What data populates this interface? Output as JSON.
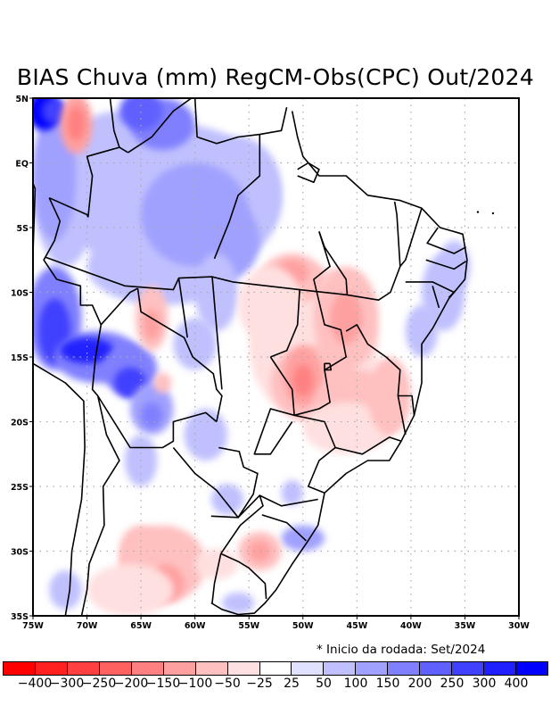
{
  "title": "BIAS Chuva (mm) RegCM-Obs(CPC) Out/2024",
  "note": "* Inicio da rodada: Set/2024",
  "map": {
    "lon_range": [
      -75,
      -30
    ],
    "lat_range": [
      -35,
      5
    ],
    "lat_ticks": [
      {
        "value": 5,
        "label": "5N"
      },
      {
        "value": 0,
        "label": "EQ"
      },
      {
        "value": -5,
        "label": "5S"
      },
      {
        "value": -10,
        "label": "10S"
      },
      {
        "value": -15,
        "label": "15S"
      },
      {
        "value": -20,
        "label": "20S"
      },
      {
        "value": -25,
        "label": "25S"
      },
      {
        "value": -30,
        "label": "30S"
      },
      {
        "value": -35,
        "label": "35S"
      }
    ],
    "lon_ticks": [
      {
        "value": -75,
        "label": "75W"
      },
      {
        "value": -70,
        "label": "70W"
      },
      {
        "value": -65,
        "label": "65W"
      },
      {
        "value": -60,
        "label": "60W"
      },
      {
        "value": -55,
        "label": "55W"
      },
      {
        "value": -50,
        "label": "50W"
      },
      {
        "value": -45,
        "label": "45W"
      },
      {
        "value": -40,
        "label": "40W"
      },
      {
        "value": -35,
        "label": "35W"
      },
      {
        "value": -30,
        "label": "30W"
      }
    ],
    "grid": "dotted"
  },
  "colorbar": {
    "labels": [
      "-400",
      "-300",
      "-250",
      "-200",
      "-150",
      "-100",
      "-50",
      "-25",
      "25",
      "50",
      "100",
      "150",
      "200",
      "250",
      "300",
      "400"
    ],
    "colors": [
      "#ff0000",
      "#ff2020",
      "#ff4040",
      "#ff6060",
      "#ff8080",
      "#ffa0a0",
      "#ffc0c0",
      "#ffe0e0",
      "#ffffff",
      "#e0e0ff",
      "#c0c0ff",
      "#a0a0ff",
      "#8080ff",
      "#6060ff",
      "#4040ff",
      "#2020ff",
      "#0000ff"
    ]
  }
}
